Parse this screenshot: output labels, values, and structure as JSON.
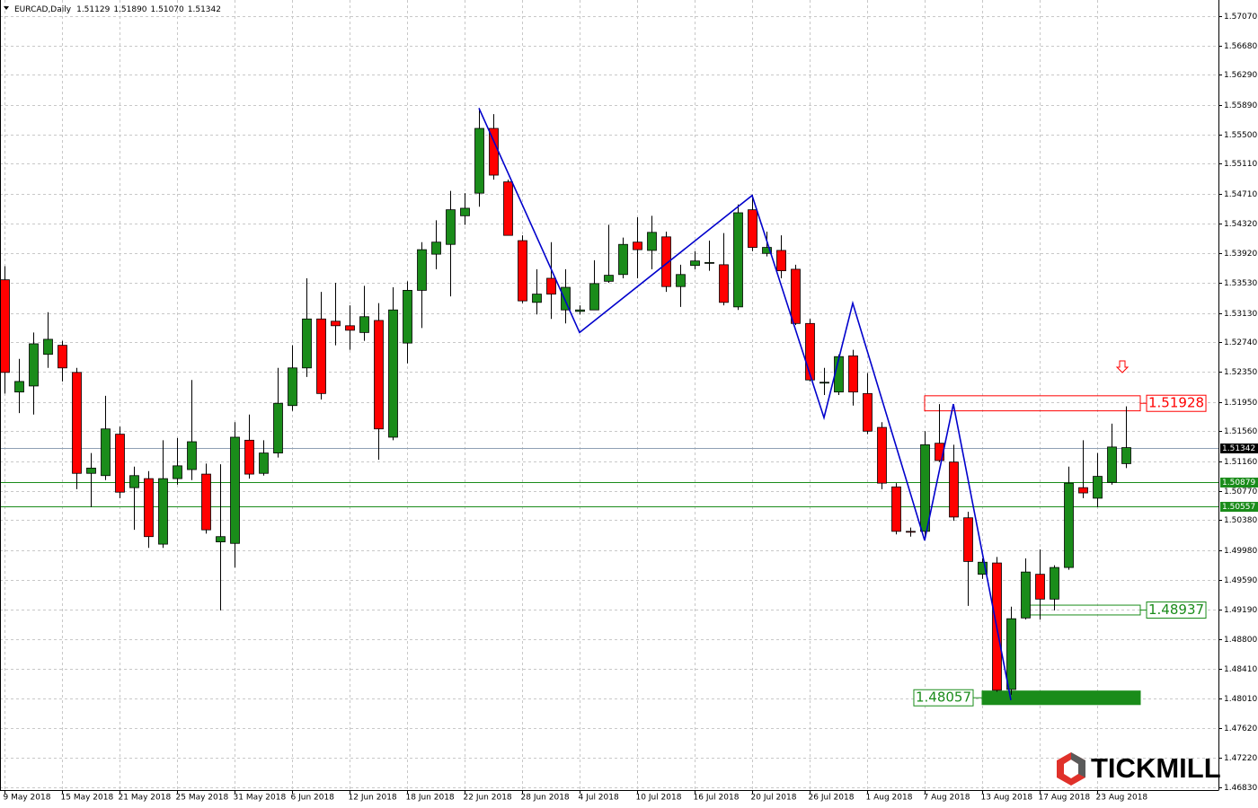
{
  "chart_data": {
    "type": "candlestick",
    "title": "EURCAD,Daily",
    "ohlc_text": [
      "1.51129",
      "1.51890",
      "1.51070",
      "1.51342"
    ],
    "logo": "TICKMILL",
    "categories": [
      "9 May 2018",
      null,
      null,
      null,
      "15 May 2018",
      null,
      null,
      null,
      "21 May 2018",
      null,
      null,
      null,
      "25 May 2018",
      null,
      null,
      null,
      "31 May 2018",
      null,
      null,
      null,
      "6 Jun 2018",
      null,
      null,
      null,
      "12 Jun 2018",
      null,
      null,
      null,
      "18 Jun 2018",
      null,
      null,
      null,
      "22 Jun 2018",
      null,
      null,
      null,
      "28 Jun 2018",
      null,
      null,
      null,
      "4 Jul 2018",
      null,
      null,
      null,
      "10 Jul 2018",
      null,
      null,
      null,
      "16 Jul 2018",
      null,
      null,
      null,
      "20 Jul 2018",
      null,
      null,
      null,
      "26 Jul 2018",
      null,
      null,
      null,
      "1 Aug 2018",
      null,
      null,
      null,
      "7 Aug 2018",
      null,
      null,
      null,
      "13 Aug 2018",
      null,
      null,
      null,
      "17 Aug 2018",
      null,
      null,
      null,
      "23 Aug 2018",
      null,
      null
    ],
    "open": [
      1.5357,
      1.5208,
      1.5216,
      1.5258,
      1.527,
      1.5234,
      1.51,
      1.5097,
      1.5152,
      1.5081,
      1.5093,
      1.5006,
      1.5093,
      1.5105,
      1.5099,
      1.5009,
      1.5007,
      1.5144,
      1.51,
      1.5127,
      1.519,
      1.524,
      1.5305,
      1.5302,
      1.5296,
      1.5287,
      1.5303,
      1.5148,
      1.5273,
      1.5343,
      1.5391,
      1.5404,
      1.5442,
      1.5472,
      1.5558,
      1.5487,
      1.5409,
      1.5327,
      1.5359,
      1.5317,
      1.5315,
      1.5317,
      1.5355,
      1.5364,
      1.5407,
      1.5396,
      1.5414,
      1.5348,
      1.5376,
      1.5379,
      1.5377,
      1.5321,
      1.545,
      1.5392,
      1.5396,
      1.5371,
      1.5299,
      1.522,
      1.5208,
      1.5256,
      1.5206,
      1.5161,
      1.5082,
      1.5023,
      1.5023,
      1.514,
      1.5115,
      1.5041,
      1.4966,
      1.4981,
      1.4813,
      1.4908,
      1.4966,
      1.4933,
      1.4975,
      1.5081,
      1.5067,
      1.5088,
      1.51129
    ],
    "high": [
      1.5375,
      1.5252,
      1.5287,
      1.5314,
      1.5276,
      1.524,
      1.5127,
      1.5203,
      1.5162,
      1.5109,
      1.5103,
      1.5144,
      1.5147,
      1.5224,
      1.5113,
      1.5112,
      1.5168,
      1.5178,
      1.5144,
      1.524,
      1.527,
      1.5359,
      1.5341,
      1.5353,
      1.5323,
      1.5349,
      1.5326,
      1.5347,
      1.5355,
      1.5407,
      1.5436,
      1.5475,
      1.5472,
      1.5585,
      1.5577,
      1.549,
      1.5416,
      1.5371,
      1.5407,
      1.5371,
      1.5323,
      1.5383,
      1.543,
      1.5413,
      1.544,
      1.5442,
      1.5421,
      1.5377,
      1.5395,
      1.5409,
      1.5419,
      1.5457,
      1.547,
      1.5421,
      1.5416,
      1.5377,
      1.5305,
      1.524,
      1.5258,
      1.5264,
      1.5233,
      1.5168,
      1.5087,
      1.5028,
      1.5156,
      1.5192,
      1.5138,
      1.5049,
      1.4987,
      1.4989,
      1.4923,
      1.4987,
      1.4999,
      1.4978,
      1.5109,
      1.5144,
      1.5127,
      1.5166,
      1.5189
    ],
    "low": [
      1.5206,
      1.518,
      1.5178,
      1.524,
      1.5222,
      1.5079,
      1.5055,
      1.5091,
      1.5067,
      1.5025,
      1.5001,
      1.5001,
      1.5085,
      1.5091,
      1.502,
      1.4918,
      1.4975,
      1.5093,
      1.5097,
      1.5121,
      1.5183,
      1.5228,
      1.5198,
      1.527,
      1.5264,
      1.5276,
      1.5118,
      1.5144,
      1.5246,
      1.5293,
      1.5371,
      1.5335,
      1.543,
      1.5454,
      1.549,
      1.5416,
      1.5326,
      1.5311,
      1.5305,
      1.5299,
      1.5311,
      1.5317,
      1.5353,
      1.5359,
      1.5359,
      1.5371,
      1.5341,
      1.5321,
      1.5371,
      1.5369,
      1.5323,
      1.5317,
      1.5395,
      1.5388,
      1.5359,
      1.5297,
      1.5222,
      1.5204,
      1.5204,
      1.519,
      1.5152,
      1.5079,
      1.5019,
      1.5016,
      1.5013,
      1.5115,
      1.5037,
      1.4924,
      1.496,
      1.481,
      1.4806,
      1.4906,
      1.4906,
      1.4918,
      1.4972,
      1.5067,
      1.5055,
      1.5085,
      1.5107
    ],
    "close": [
      1.5234,
      1.5222,
      1.5272,
      1.5278,
      1.524,
      1.51,
      1.5107,
      1.5159,
      1.5075,
      1.5097,
      1.5016,
      1.5093,
      1.511,
      1.5142,
      1.5025,
      1.5016,
      1.5148,
      1.5099,
      1.5127,
      1.5193,
      1.524,
      1.5305,
      1.5206,
      1.5296,
      1.529,
      1.5308,
      1.5159,
      1.5317,
      1.5343,
      1.5397,
      1.5407,
      1.545,
      1.5452,
      1.5558,
      1.5496,
      1.5416,
      1.5329,
      1.5338,
      1.5338,
      1.5347,
      1.5317,
      1.5352,
      1.5363,
      1.5404,
      1.5397,
      1.542,
      1.5348,
      1.5364,
      1.5382,
      1.538,
      1.5327,
      1.5446,
      1.54,
      1.54,
      1.5369,
      1.5299,
      1.5224,
      1.5221,
      1.5255,
      1.5208,
      1.5156,
      1.5087,
      1.5023,
      1.5022,
      1.5138,
      1.5117,
      1.5042,
      1.4983,
      1.4982,
      1.4812,
      1.4907,
      1.4969,
      1.4933,
      1.4975,
      1.5087,
      1.5074,
      1.5096,
      1.5135,
      1.51342
    ],
    "up_color": "#1a8c1a",
    "down_color": "#ff0000",
    "zigzag": {
      "color": "#0000cc",
      "x": [
        33,
        40,
        52,
        57,
        59,
        64,
        66,
        70
      ],
      "values": [
        1.5585,
        1.5287,
        1.5469,
        1.5174,
        1.5326,
        1.5011,
        1.5192,
        1.4799
      ]
    },
    "price_lines": [
      {
        "value": 1.51342,
        "color": "#8fa0b4",
        "label_color": "#000000"
      },
      {
        "value": 1.50879,
        "color": "#1a8c1a",
        "label_color": "#1a8c1a"
      },
      {
        "value": 1.50557,
        "color": "#1a8c1a",
        "label_color": "#1a8c1a"
      }
    ],
    "zones": [
      {
        "value": 1.51928,
        "ylim": [
          1.5183,
          1.5203
        ],
        "x": [
          64,
          79
        ],
        "color": "#ff0000",
        "filled": false,
        "label_side": "right"
      },
      {
        "value": 1.48937,
        "ylim": [
          1.4912,
          1.4925
        ],
        "x": [
          71,
          79
        ],
        "color": "#1a8c1a",
        "filled": false,
        "label_side": "right"
      },
      {
        "value": 1.48057,
        "ylim": [
          1.4793,
          1.4811
        ],
        "x": [
          68,
          79
        ],
        "color": "#1a8c1a",
        "filled": true,
        "label_side": "left"
      }
    ],
    "xlim": [
      -0.3125,
      84.4375
    ],
    "ylim": [
      1.46795,
      1.57285
    ],
    "yticks": [
      {
        "value": 1.5707,
        "label": "1.57070"
      },
      {
        "value": 1.5668,
        "label": "1.56680"
      },
      {
        "value": 1.5629,
        "label": "1.56290"
      },
      {
        "value": 1.5589,
        "label": "1.55890"
      },
      {
        "value": 1.555,
        "label": "1.55500"
      },
      {
        "value": 1.5511,
        "label": "1.55110"
      },
      {
        "value": 1.5471,
        "label": "1.54710"
      },
      {
        "value": 1.5432,
        "label": "1.54320"
      },
      {
        "value": 1.5392,
        "label": "1.53920"
      },
      {
        "value": 1.5353,
        "label": "1.53530"
      },
      {
        "value": 1.5313,
        "label": "1.53130"
      },
      {
        "value": 1.5274,
        "label": "1.52740"
      },
      {
        "value": 1.5235,
        "label": "1.52350"
      },
      {
        "value": 1.5195,
        "label": "1.51950"
      },
      {
        "value": 1.5156,
        "label": "1.51560"
      },
      {
        "value": 1.5116,
        "label": "1.51160"
      },
      {
        "value": 1.5077,
        "label": "1.50770"
      },
      {
        "value": 1.5038,
        "label": "1.50380"
      },
      {
        "value": 1.4998,
        "label": "1.49980"
      },
      {
        "value": 1.4959,
        "label": "1.49590"
      },
      {
        "value": 1.4919,
        "label": "1.49190"
      },
      {
        "value": 1.488,
        "label": "1.48800"
      },
      {
        "value": 1.4841,
        "label": "1.48410"
      },
      {
        "value": 1.4801,
        "label": "1.48010"
      },
      {
        "value": 1.4762,
        "label": "1.47620"
      },
      {
        "value": 1.4722,
        "label": "1.47220"
      },
      {
        "value": 1.4683,
        "label": "1.46830"
      }
    ],
    "grid": true
  }
}
